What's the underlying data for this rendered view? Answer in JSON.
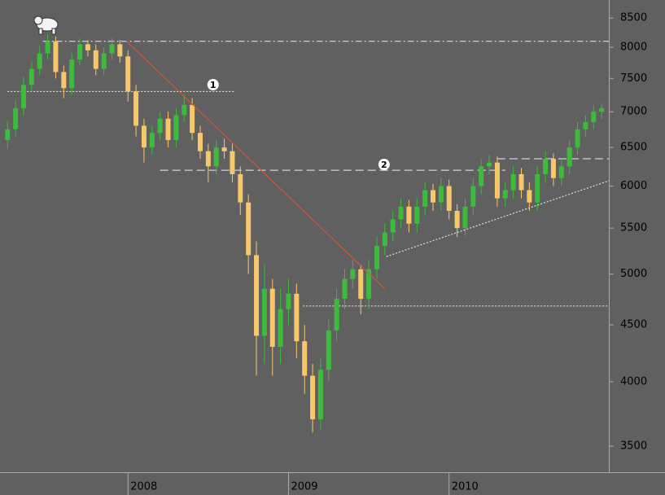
{
  "chart_data": {
    "type": "candlestick",
    "x": [
      2007.25,
      2007.3,
      2007.35,
      2007.4,
      2007.45,
      2007.5,
      2007.55,
      2007.6,
      2007.65,
      2007.7,
      2007.75,
      2007.8,
      2007.85,
      2007.9,
      2007.95,
      2008.0,
      2008.05,
      2008.1,
      2008.15,
      2008.2,
      2008.25,
      2008.3,
      2008.35,
      2008.4,
      2008.45,
      2008.5,
      2008.55,
      2008.6,
      2008.65,
      2008.7,
      2008.75,
      2008.8,
      2008.85,
      2008.9,
      2008.95,
      2009.0,
      2009.05,
      2009.1,
      2009.15,
      2009.2,
      2009.25,
      2009.3,
      2009.35,
      2009.4,
      2009.45,
      2009.5,
      2009.55,
      2009.6,
      2009.65,
      2009.7,
      2009.75,
      2009.8,
      2009.85,
      2009.9,
      2009.95,
      2010.0,
      2010.05,
      2010.1,
      2010.15,
      2010.2,
      2010.25,
      2010.3,
      2010.35,
      2010.4,
      2010.45,
      2010.5,
      2010.55,
      2010.6,
      2010.65,
      2010.7,
      2010.75,
      2010.8,
      2010.85,
      2010.9,
      2010.95
    ],
    "open": [
      6600,
      6750,
      7050,
      7400,
      7650,
      7900,
      8100,
      7600,
      7350,
      7800,
      8050,
      7950,
      7650,
      7900,
      8050,
      7850,
      7300,
      6800,
      6500,
      6700,
      6900,
      6600,
      6950,
      7100,
      6700,
      6450,
      6250,
      6500,
      6450,
      6150,
      5800,
      5200,
      4400,
      4850,
      4300,
      4650,
      4800,
      4350,
      4050,
      3700,
      4100,
      4450,
      4750,
      4950,
      5050,
      4750,
      5050,
      5300,
      5450,
      5600,
      5750,
      5550,
      5750,
      5950,
      5800,
      6000,
      5700,
      5500,
      5750,
      6000,
      6250,
      6300,
      5850,
      5950,
      6150,
      5950,
      5800,
      6150,
      6350,
      6100,
      6250,
      6500,
      6750,
      6850,
      7000
    ],
    "high": [
      6870,
      7170,
      7520,
      7770,
      8020,
      8220,
      8180,
      7700,
      7900,
      8150,
      8120,
      8050,
      8000,
      8150,
      8120,
      7950,
      7400,
      6900,
      6800,
      7000,
      7000,
      7050,
      7250,
      7200,
      6800,
      6550,
      6600,
      6620,
      6550,
      6250,
      5900,
      5350,
      5100,
      4950,
      4850,
      4950,
      4900,
      4500,
      4150,
      4200,
      4550,
      4850,
      5050,
      5150,
      5100,
      5150,
      5400,
      5550,
      5700,
      5850,
      5830,
      5850,
      6050,
      6030,
      6100,
      6080,
      5780,
      5850,
      6100,
      6350,
      6400,
      6380,
      6050,
      6250,
      6230,
      6050,
      6250,
      6450,
      6420,
      6350,
      6600,
      6850,
      6950,
      7100,
      7120
    ],
    "low": [
      6480,
      6650,
      6950,
      7300,
      7550,
      7800,
      7500,
      7200,
      7250,
      7700,
      7850,
      7550,
      7550,
      7800,
      7750,
      7150,
      6650,
      6300,
      6400,
      6600,
      6500,
      6500,
      6850,
      6600,
      6350,
      6050,
      6150,
      6350,
      6050,
      5650,
      5000,
      4050,
      4150,
      4050,
      4150,
      4500,
      4200,
      3900,
      3600,
      3620,
      4000,
      4350,
      4650,
      4850,
      4600,
      4650,
      4950,
      5200,
      5350,
      5500,
      5450,
      5450,
      5650,
      5700,
      5700,
      5600,
      5400,
      5420,
      5650,
      5900,
      6150,
      5750,
      5750,
      5850,
      5850,
      5700,
      5700,
      6050,
      6000,
      6000,
      6150,
      6400,
      6650,
      6750,
      6900
    ],
    "close": [
      6750,
      7050,
      7400,
      7650,
      7900,
      8100,
      7600,
      7350,
      7800,
      8050,
      7950,
      7650,
      7900,
      8050,
      7850,
      7300,
      6800,
      6500,
      6700,
      6900,
      6600,
      6950,
      7100,
      6700,
      6450,
      6250,
      6500,
      6450,
      6150,
      5800,
      5200,
      4400,
      4850,
      4300,
      4650,
      4800,
      4350,
      4050,
      3700,
      4100,
      4450,
      4750,
      4950,
      5050,
      4750,
      5050,
      5300,
      5450,
      5600,
      5750,
      5550,
      5750,
      5950,
      5800,
      6000,
      5700,
      5500,
      5750,
      6000,
      6250,
      6300,
      5850,
      5950,
      6150,
      5950,
      5800,
      6150,
      6350,
      6100,
      6250,
      6500,
      6750,
      6850,
      7000,
      7050
    ],
    "up_color": "#3dbb3d",
    "down_color": "#f7c76c",
    "log_scale": true,
    "xlim": [
      2007.203,
      2010.995
    ],
    "ylim": [
      3316,
      8824
    ],
    "xticks": [
      2008,
      2009,
      2010
    ],
    "yticks": [
      3500,
      4000,
      4500,
      5000,
      5500,
      6000,
      6500,
      7000,
      7500,
      8000,
      8500
    ],
    "hlines": [
      {
        "value": 8100,
        "x": [
          2007.47,
          2010.995
        ],
        "style": "dashdot"
      },
      {
        "value": 7300,
        "x": [
          2007.25,
          2008.66
        ],
        "style": "dotted"
      },
      {
        "value": 6200,
        "x": [
          2008.2,
          2010.35
        ],
        "style": "dashed"
      },
      {
        "value": 6350,
        "x": [
          2010.3,
          2010.995
        ],
        "style": "dashed"
      },
      {
        "value": 4680,
        "x": [
          2009.09,
          2010.995
        ],
        "style": "dotted"
      }
    ],
    "trendlines": [
      {
        "x": [
          2007.99,
          2009.6
        ],
        "y": [
          8105,
          4849
        ],
        "color": "#d2553a",
        "style": "solid"
      },
      {
        "x": [
          2009.61,
          2010.995
        ],
        "y": [
          5185,
          6066
        ],
        "color": "#dddddd",
        "style": "dotted"
      }
    ],
    "annotations": [
      {
        "text": "1",
        "x": 2008.53,
        "y": 7403
      },
      {
        "text": "2",
        "x": 2009.595,
        "y": 6275
      }
    ]
  }
}
